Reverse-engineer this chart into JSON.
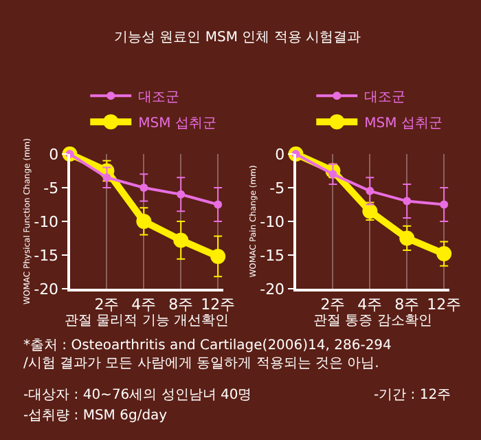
{
  "chart_data": [
    {
      "type": "line",
      "title": "기능성 원료인 MSM 인체 적용 시험결과",
      "xlabel": "관절 물리적 기능 개선확인",
      "ylabel": "WOMAC Physical Function Change (mm)",
      "categories": [
        null,
        "2주",
        "4주",
        "8주",
        "12주"
      ],
      "ylim": [
        -20,
        0
      ],
      "yticks": [
        {
          "value": -20,
          "label": "-20"
        },
        {
          "value": -15,
          "label": "-15"
        },
        {
          "value": -10,
          "label": "-10"
        },
        {
          "value": -5,
          "label": "-5"
        },
        0
      ],
      "grid": "x",
      "legend": "top right",
      "marker": "circle",
      "line_style": "solid",
      "series": [
        {
          "name": "대조군",
          "color": "#e86ee0",
          "values": [
            0,
            -3.5,
            -5,
            -6,
            -7.5
          ],
          "errors": [
            null,
            1.5,
            2,
            2.5,
            2.5
          ]
        },
        {
          "name": "MSM 섭취군",
          "color": "#ffee00",
          "values": [
            0,
            -2.5,
            -10,
            -12.8,
            -15.2
          ],
          "errors": [
            null,
            1.5,
            2,
            2.8,
            3
          ]
        }
      ],
      "annotations": [
        "*출처 : Osteoarthritis and Cartilage(2006)14, 286-294 /시험 결과가 모든 사람에게 동일하게 적용되는 것은 아님.",
        "-대상자 : 40~76세의 성인남녀 40명",
        "-기간 : 12주",
        "-섭취량 : MSM 6g/day"
      ]
    },
    {
      "type": "line",
      "xlabel": "관절 통증 감소확인",
      "ylabel": "WOMAC Pain Change (mm)",
      "categories": [
        null,
        "2주",
        "4주",
        "8주",
        "12주"
      ],
      "ylim": [
        -20,
        0
      ],
      "yticks": [
        {
          "value": -20,
          "label": "-20"
        },
        {
          "value": -15,
          "label": "-15"
        },
        {
          "value": -10,
          "label": "-10"
        },
        {
          "value": -5,
          "label": "-5"
        },
        0
      ],
      "grid": "x",
      "legend": "top right",
      "marker": "circle",
      "line_style": "solid",
      "series": [
        {
          "name": "대조군",
          "color": "#e86ee0",
          "values": [
            0,
            -3,
            -5.5,
            -7,
            -7.5
          ],
          "errors": [
            null,
            1.5,
            2,
            2.5,
            2.5
          ]
        },
        {
          "name": "MSM 섭취군",
          "color": "#ffee00",
          "values": [
            0,
            -2.5,
            -8.5,
            -12.5,
            -14.8
          ],
          "errors": [
            null,
            1,
            1.3,
            1.8,
            1.8
          ]
        }
      ]
    }
  ]
}
